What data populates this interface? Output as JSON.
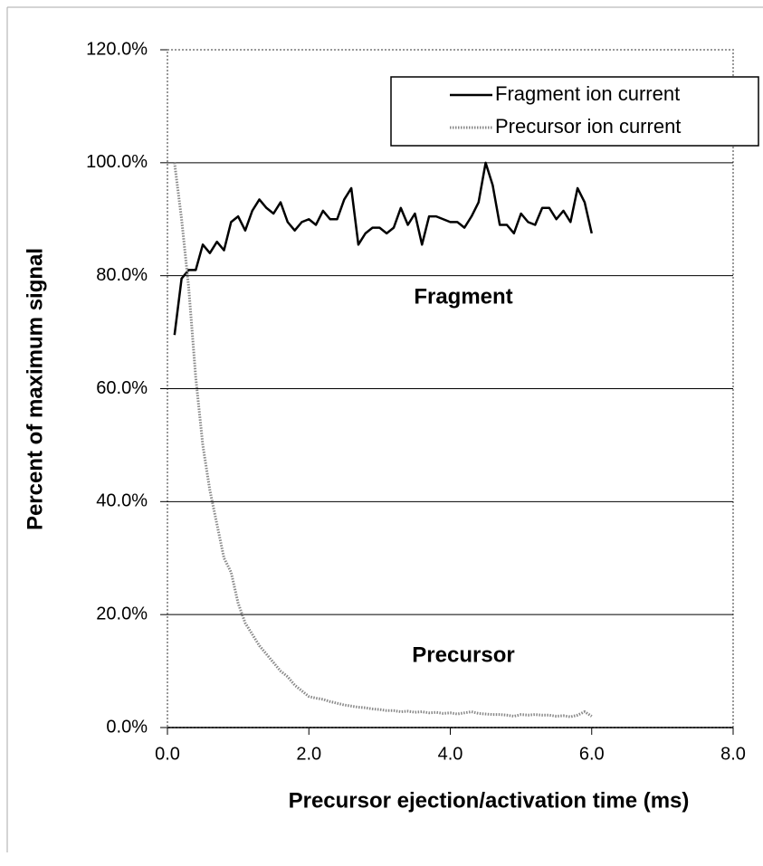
{
  "chart_data": {
    "type": "line",
    "x_label": "Precursor ejection/activation time (ms)",
    "y_label": "Percent of maximum signal",
    "x": [
      0.1,
      0.2,
      0.3,
      0.4,
      0.5,
      0.6,
      0.7,
      0.8,
      0.9,
      1.0,
      1.1,
      1.2,
      1.3,
      1.4,
      1.5,
      1.6,
      1.7,
      1.8,
      1.9,
      2.0,
      2.1,
      2.2,
      2.3,
      2.4,
      2.5,
      2.6,
      2.7,
      2.8,
      2.9,
      3.0,
      3.1,
      3.2,
      3.3,
      3.4,
      3.5,
      3.6,
      3.7,
      3.8,
      3.9,
      4.0,
      4.1,
      4.2,
      4.3,
      4.4,
      4.5,
      4.6,
      4.7,
      4.8,
      4.9,
      5.0,
      5.1,
      5.2,
      5.3,
      5.4,
      5.5,
      5.6,
      5.7,
      5.8,
      5.9,
      6.0
    ],
    "series": [
      {
        "name": "Fragment ion current",
        "color": "#000000",
        "style": "solid",
        "values": [
          69.5,
          79.5,
          81,
          81,
          85.5,
          84,
          86,
          84.5,
          89.5,
          90.5,
          88,
          91.5,
          93.5,
          92,
          91,
          93,
          89.5,
          88,
          89.5,
          90,
          89,
          91.5,
          90,
          90,
          93.5,
          95.5,
          85.5,
          87.5,
          88.5,
          88.5,
          87.5,
          88.5,
          92,
          89,
          91,
          85.5,
          90.5,
          90.5,
          90,
          89.5,
          89.5,
          88.5,
          90.5,
          93,
          100,
          96,
          89,
          89,
          87.5,
          91,
          89.5,
          89,
          92,
          92,
          90,
          91.5,
          89.5,
          95.5,
          93,
          87.5
        ]
      },
      {
        "name": "Precursor ion current",
        "color": "#888888",
        "style": "dotted",
        "values": [
          100,
          90,
          78,
          62,
          50,
          42,
          36,
          30,
          27.5,
          22,
          18.5,
          16.5,
          14.5,
          13,
          11.5,
          10,
          9,
          7.5,
          6.5,
          5.5,
          5.2,
          5,
          4.6,
          4.3,
          4,
          3.8,
          3.6,
          3.5,
          3.3,
          3.2,
          3,
          3,
          2.8,
          2.9,
          2.7,
          2.8,
          2.6,
          2.7,
          2.5,
          2.6,
          2.4,
          2.6,
          2.8,
          2.5,
          2.4,
          2.3,
          2.3,
          2.2,
          2.0,
          2.3,
          2.2,
          2.3,
          2.2,
          2.2,
          2.0,
          2.1,
          1.9,
          2.2,
          2.8,
          2.0
        ]
      }
    ],
    "annotations": [
      "Fragment",
      "Precursor"
    ],
    "xlim": [
      0,
      8
    ],
    "ylim": [
      0,
      120
    ],
    "xticks": [
      {
        "value": 0,
        "label": "0.0"
      },
      {
        "value": 2,
        "label": "2.0"
      },
      {
        "value": 4,
        "label": "4.0"
      },
      {
        "value": 6,
        "label": "6.0"
      },
      {
        "value": 8,
        "label": "8.0"
      }
    ],
    "yticks": [
      {
        "value": 0,
        "label": "0.0%"
      },
      {
        "value": 20,
        "label": "20.0%"
      },
      {
        "value": 40,
        "label": "40.0%"
      },
      {
        "value": 60,
        "label": "60.0%"
      },
      {
        "value": 80,
        "label": "80.0%"
      },
      {
        "value": 100,
        "label": "100.0%"
      },
      {
        "value": 120,
        "label": "120.0%"
      }
    ],
    "grid": true,
    "legend_position": "upper right"
  }
}
